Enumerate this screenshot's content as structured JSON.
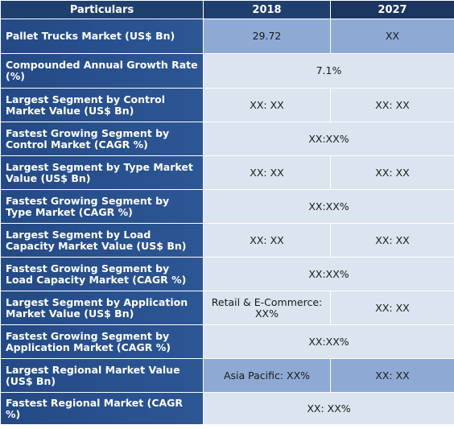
{
  "header": {
    "particulars": "Particulars",
    "y2018": "2018",
    "y2027": "2027"
  },
  "rows": [
    {
      "label": "Pallet Trucks Market (US$ Bn)",
      "v2018": "29.72",
      "v2027": "XX"
    },
    {
      "label": "Compounded Annual Growth Rate (%)",
      "merged": "7.1%"
    },
    {
      "label": "Largest Segment by Control Market Value (US$ Bn)",
      "v2018": "XX: XX",
      "v2027": "XX: XX"
    },
    {
      "label": "Fastest Growing Segment by Control Market (CAGR %)",
      "merged": "XX:XX%"
    },
    {
      "label": "Largest Segment by Type Market Value (US$ Bn)",
      "v2018": "XX: XX",
      "v2027": "XX: XX"
    },
    {
      "label": "Fastest Growing Segment by Type Market (CAGR %)",
      "merged": "XX:XX%"
    },
    {
      "label": "Largest Segment by Load Capacity Market Value (US$ Bn)",
      "v2018": "XX: XX",
      "v2027": "XX: XX"
    },
    {
      "label": "Fastest Growing Segment by Load Capacity Market (CAGR %)",
      "merged": "XX:XX%"
    },
    {
      "label": "Largest Segment by Application Market Value (US$ Bn)",
      "v2018": "Retail & E-Commerce: XX%",
      "v2027": "XX: XX"
    },
    {
      "label": "Fastest Growing Segment by Application Market (CAGR %)",
      "merged": "XX:XX%"
    },
    {
      "label": "Largest Regional Market Value (US$ Bn)",
      "v2018": "Asia Pacific: XX%",
      "v2027": "XX: XX"
    },
    {
      "label": "Fastest Regional Market (CAGR %)",
      "merged": "XX: XX%"
    }
  ],
  "colors": {
    "header_bg": "#1f3f6e",
    "label_bg": "#2a5190",
    "light_cell": "#dbe4ef",
    "mid_cell": "#8eaad4"
  }
}
